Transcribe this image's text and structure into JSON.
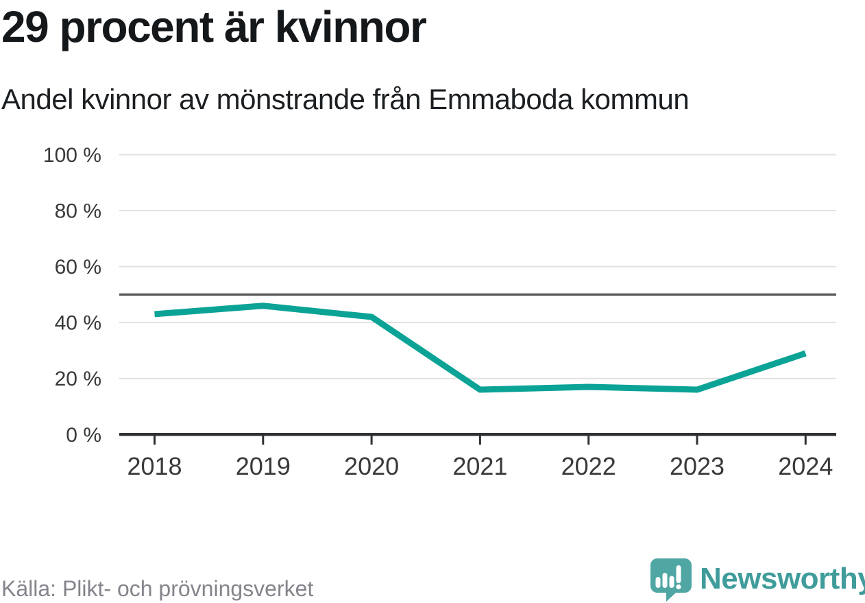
{
  "chart_data": {
    "type": "line",
    "title": "29 procent är kvinnor",
    "subtitle": "Andel kvinnor av mönstrande från Emmaboda kommun",
    "categories": [
      "2018",
      "2019",
      "2020",
      "2021",
      "2022",
      "2023",
      "2024"
    ],
    "values": [
      43,
      46,
      42,
      16,
      17,
      16,
      29
    ],
    "unit": "%",
    "ylim": [
      0,
      100
    ],
    "ytick_values": [
      0,
      20,
      40,
      60,
      80,
      100
    ],
    "ytick_labels": [
      "0 %",
      "20 %",
      "40 %",
      "60 %",
      "80 %",
      "100 %"
    ],
    "reference_line": 50,
    "grid": true,
    "legend_position": "none",
    "line_color": "#0ba396"
  },
  "footer": {
    "source": "Källa: Plikt- och prövningsverket",
    "brand": "Newsworthy"
  },
  "colors": {
    "line_teal": "#0ba396",
    "logo_teal": "#4fa6a3",
    "wordmark_teal": "#3f9c9a",
    "grid_gray": "#e1e1e1",
    "reference_gray": "#5d5d5d",
    "axis_dark": "#2e3133",
    "label_gray": "#37393b",
    "source_gray": "#84848c"
  }
}
